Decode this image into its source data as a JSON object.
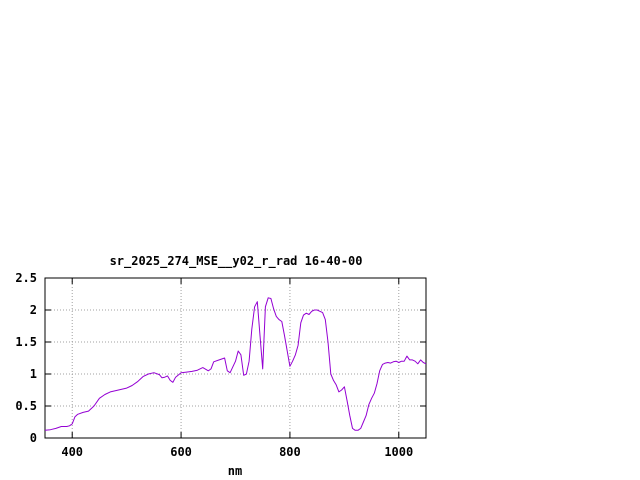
{
  "chart_data": {
    "type": "line",
    "title": "sr_2025_274_MSE__y02_r_rad 16-40-00",
    "xlabel": "nm",
    "ylabel": "",
    "xlim": [
      350,
      1050
    ],
    "ylim": [
      0,
      2.5
    ],
    "xticks": [
      400,
      600,
      800,
      1000
    ],
    "xtick_labels": [
      "400",
      "600",
      "800",
      "1000"
    ],
    "yticks": [
      0,
      0.5,
      1,
      1.5,
      2,
      2.5
    ],
    "ytick_labels": [
      "0",
      "0.5",
      "1",
      "1.5",
      "2",
      "2.5"
    ],
    "grid": true,
    "legend": "none",
    "series": [
      {
        "color": "#9400d3",
        "x": [
          350,
          360,
          370,
          380,
          390,
          395,
          400,
          405,
          410,
          420,
          430,
          440,
          450,
          460,
          470,
          480,
          490,
          500,
          510,
          520,
          530,
          540,
          550,
          560,
          565,
          570,
          575,
          580,
          585,
          590,
          600,
          610,
          620,
          630,
          640,
          650,
          655,
          660,
          670,
          680,
          685,
          690,
          700,
          705,
          710,
          715,
          720,
          725,
          730,
          735,
          740,
          745,
          750,
          755,
          760,
          765,
          770,
          775,
          780,
          785,
          790,
          800,
          805,
          810,
          815,
          820,
          825,
          830,
          835,
          840,
          845,
          850,
          855,
          860,
          865,
          870,
          875,
          880,
          885,
          890,
          895,
          900,
          905,
          910,
          915,
          920,
          925,
          930,
          935,
          940,
          945,
          950,
          955,
          960,
          965,
          970,
          975,
          980,
          985,
          990,
          995,
          1000,
          1005,
          1010,
          1015,
          1020,
          1025,
          1030,
          1035,
          1040,
          1045,
          1050
        ],
        "y": [
          0.12,
          0.13,
          0.15,
          0.18,
          0.18,
          0.19,
          0.22,
          0.33,
          0.37,
          0.4,
          0.42,
          0.5,
          0.62,
          0.68,
          0.72,
          0.74,
          0.76,
          0.78,
          0.82,
          0.88,
          0.96,
          1.0,
          1.02,
          0.99,
          0.94,
          0.95,
          0.97,
          0.9,
          0.87,
          0.95,
          1.02,
          1.03,
          1.04,
          1.06,
          1.1,
          1.05,
          1.08,
          1.19,
          1.22,
          1.25,
          1.05,
          1.02,
          1.2,
          1.36,
          1.3,
          0.98,
          1.0,
          1.2,
          1.7,
          2.05,
          2.13,
          1.6,
          1.08,
          2.05,
          2.19,
          2.18,
          2.02,
          1.9,
          1.85,
          1.82,
          1.6,
          1.12,
          1.2,
          1.3,
          1.45,
          1.8,
          1.92,
          1.95,
          1.93,
          1.98,
          2.0,
          2.0,
          1.98,
          1.96,
          1.85,
          1.5,
          1.0,
          0.9,
          0.83,
          0.72,
          0.75,
          0.8,
          0.58,
          0.35,
          0.15,
          0.12,
          0.12,
          0.15,
          0.25,
          0.35,
          0.52,
          0.62,
          0.7,
          0.85,
          1.05,
          1.15,
          1.17,
          1.18,
          1.17,
          1.19,
          1.2,
          1.18,
          1.2,
          1.2,
          1.28,
          1.22,
          1.22,
          1.2,
          1.16,
          1.22,
          1.18,
          1.16
        ]
      }
    ]
  }
}
